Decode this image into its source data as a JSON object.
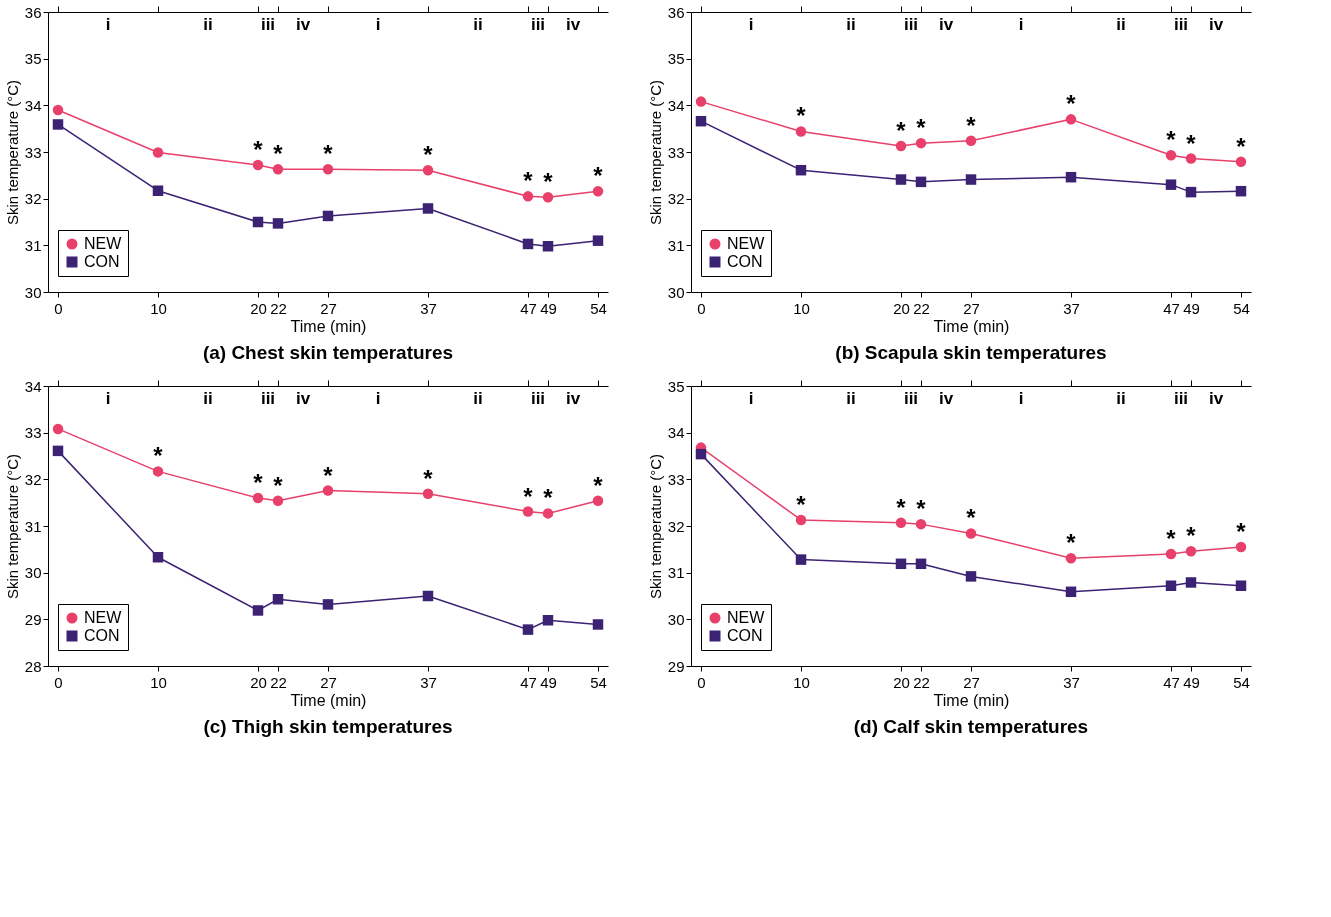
{
  "chart_data": [
    {
      "type": "line",
      "title": "(a) Chest skin temperatures",
      "xlabel": "Time (min)",
      "ylabel": "Skin temperature (°C)",
      "x": [
        0,
        10,
        20,
        22,
        27,
        37,
        47,
        49,
        54
      ],
      "series": [
        {
          "name": "NEW",
          "color": "#e8406a",
          "marker": "circle",
          "values": [
            33.9,
            32.99,
            32.72,
            32.63,
            32.63,
            32.61,
            32.05,
            32.03,
            32.16
          ]
        },
        {
          "name": "CON",
          "color": "#3b2272",
          "marker": "square",
          "values": [
            33.59,
            32.17,
            31.5,
            31.47,
            31.63,
            31.79,
            31.03,
            30.98,
            31.1
          ]
        }
      ],
      "xlim": [
        -1,
        55
      ],
      "xticks": [
        0,
        10,
        20,
        22,
        27,
        37,
        47,
        49,
        54
      ],
      "ylim": [
        30,
        36
      ],
      "yticks": [
        30,
        31,
        32,
        33,
        34,
        35,
        36
      ],
      "grid": false,
      "legend": "bottom left",
      "line_style": "solid",
      "annotations": [
        "i",
        "ii",
        "iii",
        "iv",
        "i",
        "ii",
        "iii",
        "iv",
        {
          "text": "*",
          "x": 20,
          "y": 32.72
        },
        {
          "text": "*",
          "x": 22,
          "y": 32.63
        },
        {
          "text": "*",
          "x": 27,
          "y": 32.63
        },
        {
          "text": "*",
          "x": 37,
          "y": 32.61
        },
        {
          "text": "*",
          "x": 47,
          "y": 32.05
        },
        {
          "text": "*",
          "x": 49,
          "y": 32.03
        },
        {
          "text": "*",
          "x": 54,
          "y": 32.16
        }
      ]
    },
    {
      "type": "line",
      "title": "(b) Scapula skin temperatures",
      "xlabel": "Time (min)",
      "ylabel": "Skin temperature (°C)",
      "x": [
        0,
        10,
        20,
        22,
        27,
        37,
        47,
        49,
        54
      ],
      "series": [
        {
          "name": "NEW",
          "color": "#e8406a",
          "marker": "circle",
          "values": [
            34.08,
            33.44,
            33.13,
            33.19,
            33.24,
            33.7,
            32.93,
            32.86,
            32.79
          ]
        },
        {
          "name": "CON",
          "color": "#3b2272",
          "marker": "square",
          "values": [
            33.66,
            32.61,
            32.41,
            32.36,
            32.41,
            32.46,
            32.3,
            32.14,
            32.16
          ]
        }
      ],
      "xlim": [
        -1,
        55
      ],
      "xticks": [
        0,
        10,
        20,
        22,
        27,
        37,
        47,
        49,
        54
      ],
      "ylim": [
        30,
        36
      ],
      "yticks": [
        30,
        31,
        32,
        33,
        34,
        35,
        36
      ],
      "grid": false,
      "legend": "bottom left",
      "line_style": "solid",
      "annotations": [
        "i",
        "ii",
        "iii",
        "iv",
        "i",
        "ii",
        "iii",
        "iv",
        {
          "text": "*",
          "x": 10,
          "y": 33.44
        },
        {
          "text": "*",
          "x": 20,
          "y": 33.13
        },
        {
          "text": "*",
          "x": 22,
          "y": 33.19
        },
        {
          "text": "*",
          "x": 27,
          "y": 33.24
        },
        {
          "text": "*",
          "x": 37,
          "y": 33.7
        },
        {
          "text": "*",
          "x": 47,
          "y": 32.93
        },
        {
          "text": "*",
          "x": 49,
          "y": 32.86
        },
        {
          "text": "*",
          "x": 54,
          "y": 32.79
        }
      ]
    },
    {
      "type": "line",
      "title": "(c) Thigh skin temperatures",
      "xlabel": "Time (min)",
      "ylabel": "Skin temperature (°C)",
      "x": [
        0,
        10,
        20,
        22,
        27,
        37,
        47,
        49,
        54
      ],
      "series": [
        {
          "name": "NEW",
          "color": "#e8406a",
          "marker": "circle",
          "values": [
            33.08,
            32.17,
            31.6,
            31.54,
            31.76,
            31.69,
            31.31,
            31.27,
            31.54
          ]
        },
        {
          "name": "CON",
          "color": "#3b2272",
          "marker": "square",
          "values": [
            32.61,
            30.33,
            29.19,
            29.43,
            29.32,
            29.5,
            28.78,
            28.98,
            28.89
          ]
        }
      ],
      "xlim": [
        -1,
        55
      ],
      "xticks": [
        0,
        10,
        20,
        22,
        27,
        37,
        47,
        49,
        54
      ],
      "ylim": [
        28,
        34
      ],
      "yticks": [
        28,
        29,
        30,
        31,
        32,
        33,
        34
      ],
      "grid": false,
      "legend": "bottom left",
      "line_style": "solid",
      "annotations": [
        "i",
        "ii",
        "iii",
        "iv",
        "i",
        "ii",
        "iii",
        "iv",
        {
          "text": "*",
          "x": 10,
          "y": 32.17
        },
        {
          "text": "*",
          "x": 20,
          "y": 31.6
        },
        {
          "text": "*",
          "x": 22,
          "y": 31.54
        },
        {
          "text": "*",
          "x": 27,
          "y": 31.76
        },
        {
          "text": "*",
          "x": 37,
          "y": 31.69
        },
        {
          "text": "*",
          "x": 47,
          "y": 31.31
        },
        {
          "text": "*",
          "x": 49,
          "y": 31.27
        },
        {
          "text": "*",
          "x": 54,
          "y": 31.54
        }
      ]
    },
    {
      "type": "line",
      "title": "(d) Calf skin temperatures",
      "xlabel": "Time (min)",
      "ylabel": "Skin temperature (°C)",
      "x": [
        0,
        10,
        20,
        22,
        27,
        37,
        47,
        49,
        54
      ],
      "series": [
        {
          "name": "NEW",
          "color": "#e8406a",
          "marker": "circle",
          "values": [
            33.68,
            32.13,
            32.07,
            32.04,
            31.84,
            31.31,
            31.4,
            31.46,
            31.55
          ]
        },
        {
          "name": "CON",
          "color": "#3b2272",
          "marker": "square",
          "values": [
            33.54,
            31.28,
            31.19,
            31.19,
            30.92,
            30.59,
            30.72,
            30.79,
            30.72
          ]
        }
      ],
      "xlim": [
        -1,
        55
      ],
      "xticks": [
        0,
        10,
        20,
        22,
        27,
        37,
        47,
        49,
        54
      ],
      "ylim": [
        29,
        35
      ],
      "yticks": [
        29,
        30,
        31,
        32,
        33,
        34,
        35
      ],
      "grid": false,
      "legend": "bottom left",
      "line_style": "solid",
      "annotations": [
        "i",
        "ii",
        "iii",
        "iv",
        "i",
        "ii",
        "iii",
        "iv",
        {
          "text": "*",
          "x": 10,
          "y": 32.13
        },
        {
          "text": "*",
          "x": 20,
          "y": 32.07
        },
        {
          "text": "*",
          "x": 22,
          "y": 32.04
        },
        {
          "text": "*",
          "x": 27,
          "y": 31.84
        },
        {
          "text": "*",
          "x": 37,
          "y": 31.31
        },
        {
          "text": "*",
          "x": 47,
          "y": 31.4
        },
        {
          "text": "*",
          "x": 49,
          "y": 31.46
        },
        {
          "text": "*",
          "x": 54,
          "y": 31.55
        }
      ]
    }
  ]
}
